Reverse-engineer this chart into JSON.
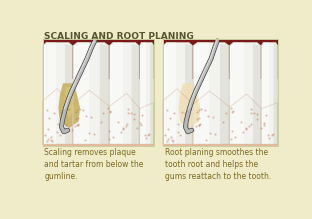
{
  "bg_color": "#f0ecca",
  "title": "SCALING AND ROOT PLANING",
  "title_color": "#555530",
  "title_fontsize": 6.5,
  "caption_left": "Scaling removes plaque\nand tartar from below the\ngumline.",
  "caption_right": "Root planing smoothes the\ntooth root and helps the\ngums reattach to the tooth.",
  "caption_color": "#7a6a20",
  "caption_fontsize": 5.5,
  "panel_border_color": "#c8d0a0",
  "gum_color": "#e8a882",
  "gum_mid": "#d09070",
  "tooth_white": "#f2f2ee",
  "tooth_cream": "#e8e8dc",
  "tooth_shadow": "#c8c8b8",
  "tooth_edge": "#d0d0c0",
  "plaque_color": "#c8b060",
  "plaque_light": "#d8c878",
  "blood_color": "#7a1a18",
  "blood_light": "#a03030",
  "tool_silver": "#b8b8b8",
  "tool_dark": "#606868",
  "tool_light": "#e0e0e0",
  "gum_dot_color": "#c07858",
  "root_color": "#d4b87a",
  "root_light": "#e8d090"
}
